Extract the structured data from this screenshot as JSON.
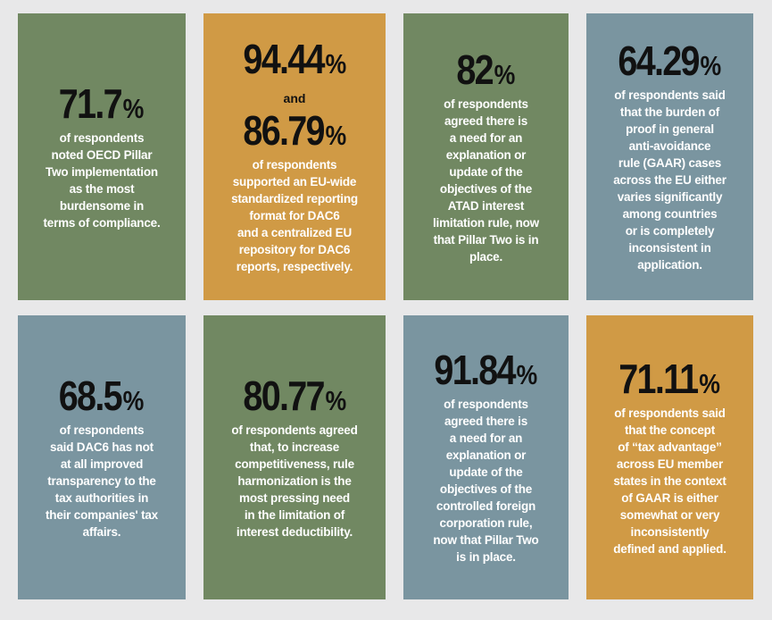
{
  "cards": [
    {
      "number": "71.7",
      "pct": "%",
      "lines": [
        "of respondents",
        "noted OECD Pillar",
        "Two implementation",
        "as the most",
        "burdensome in",
        "terms of compliance."
      ]
    },
    {
      "number": "94.44",
      "pct": "%",
      "and": "and",
      "number2": "86.79",
      "pct2": "%",
      "lines": [
        "of respondents",
        "supported an EU-wide",
        "standardized reporting",
        "format for DAC6",
        "and a centralized EU",
        "repository for DAC6",
        "reports, respectively."
      ]
    },
    {
      "number": "82",
      "pct": "%",
      "lines": [
        "of respondents",
        "agreed there is",
        "a need for an",
        "explanation or",
        "update of the",
        "objectives of the",
        "ATAD interest",
        "limitation rule, now",
        "that Pillar Two is in",
        "place."
      ]
    },
    {
      "number": "64.29",
      "pct": "%",
      "lines": [
        "of respondents said",
        "that the burden of",
        "proof in general",
        "anti-avoidance",
        "rule (GAAR) cases",
        "across the EU either",
        "varies significantly",
        "among countries",
        "or is completely",
        "inconsistent in",
        "application."
      ]
    },
    {
      "number": "68.5",
      "pct": "%",
      "lines": [
        "of respondents",
        "said DAC6 has not",
        "at all improved",
        "transparency to the",
        "tax authorities in",
        "their companies' tax",
        "affairs."
      ]
    },
    {
      "number": "80.77",
      "pct": "%",
      "lines": [
        "of respondents agreed",
        "that, to increase",
        "competitiveness, rule",
        "harmonization is the",
        "most pressing need",
        "in the limitation of",
        "interest deductibility."
      ]
    },
    {
      "number": "91.84",
      "pct": "%",
      "lines": [
        "of respondents",
        "agreed there is",
        "a need for an",
        "explanation or",
        "update of the",
        "objectives of the",
        "controlled foreign",
        "corporation rule,",
        "now that Pillar Two",
        "is in place."
      ]
    },
    {
      "number": "71.11",
      "pct": "%",
      "lines": [
        "of respondents said",
        "that the concept",
        "of “tax advantage”",
        "across EU member",
        "states in the context",
        "of GAAR is either",
        "somewhat or very",
        "inconsistently",
        "defined and applied."
      ]
    }
  ],
  "colors": {
    "green": "#718862",
    "orange": "#d09a45",
    "slate": "#7a95a0",
    "background": "#e8e8e9"
  }
}
